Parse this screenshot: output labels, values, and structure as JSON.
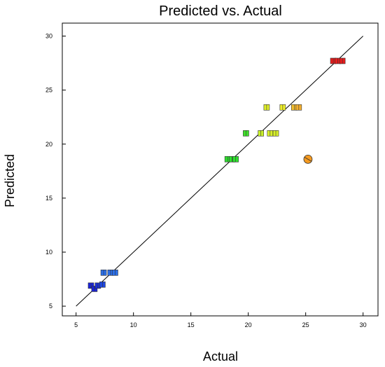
{
  "chart_data": {
    "type": "scatter",
    "title": "Predicted vs. Actual",
    "xlabel": "Actual",
    "ylabel": "Predicted",
    "xlim": [
      3.8,
      31.3
    ],
    "ylim": [
      4.1,
      31.2
    ],
    "xticks": [
      "5",
      "10",
      "15",
      "20",
      "25",
      "30"
    ],
    "yticks": [
      "5",
      "10",
      "15",
      "20",
      "25",
      "30"
    ],
    "grid": false,
    "reference_line": {
      "from": [
        5,
        5
      ],
      "to": [
        30,
        30
      ],
      "color": "#000000"
    },
    "points": [
      {
        "x": 6.3,
        "y": 6.9,
        "color": "#1a23d8",
        "shape": "square"
      },
      {
        "x": 6.6,
        "y": 6.6,
        "color": "#1a23d8",
        "shape": "square"
      },
      {
        "x": 6.9,
        "y": 6.9,
        "color": "#1a2fd8",
        "shape": "square"
      },
      {
        "x": 7.3,
        "y": 7.0,
        "color": "#1f48e0",
        "shape": "square"
      },
      {
        "x": 7.4,
        "y": 8.1,
        "color": "#2b6fe8",
        "shape": "square"
      },
      {
        "x": 8.0,
        "y": 8.1,
        "color": "#2b6fe8",
        "shape": "square"
      },
      {
        "x": 8.4,
        "y": 8.1,
        "color": "#2b6fe8",
        "shape": "square"
      },
      {
        "x": 18.2,
        "y": 18.6,
        "color": "#2ee02e",
        "shape": "square"
      },
      {
        "x": 18.6,
        "y": 18.6,
        "color": "#2ee02e",
        "shape": "square"
      },
      {
        "x": 18.9,
        "y": 18.6,
        "color": "#2ee02e",
        "shape": "square"
      },
      {
        "x": 19.8,
        "y": 21.0,
        "color": "#3fe02a",
        "shape": "square"
      },
      {
        "x": 21.1,
        "y": 21.0,
        "color": "#c8f02a",
        "shape": "square"
      },
      {
        "x": 21.9,
        "y": 21.0,
        "color": "#d8f02a",
        "shape": "square"
      },
      {
        "x": 22.4,
        "y": 21.0,
        "color": "#d8f02a",
        "shape": "square"
      },
      {
        "x": 21.6,
        "y": 23.4,
        "color": "#e0f02a",
        "shape": "square"
      },
      {
        "x": 23.0,
        "y": 23.4,
        "color": "#f0f02a",
        "shape": "square"
      },
      {
        "x": 24.0,
        "y": 23.4,
        "color": "#f5c030",
        "shape": "square"
      },
      {
        "x": 24.4,
        "y": 23.4,
        "color": "#f5b030",
        "shape": "square"
      },
      {
        "x": 25.2,
        "y": 18.6,
        "color": "#f59a20",
        "shape": "circle"
      },
      {
        "x": 27.4,
        "y": 27.7,
        "color": "#e81c1c",
        "shape": "square"
      },
      {
        "x": 27.8,
        "y": 27.7,
        "color": "#e81c1c",
        "shape": "square"
      },
      {
        "x": 28.2,
        "y": 27.7,
        "color": "#e81c1c",
        "shape": "square"
      }
    ]
  }
}
